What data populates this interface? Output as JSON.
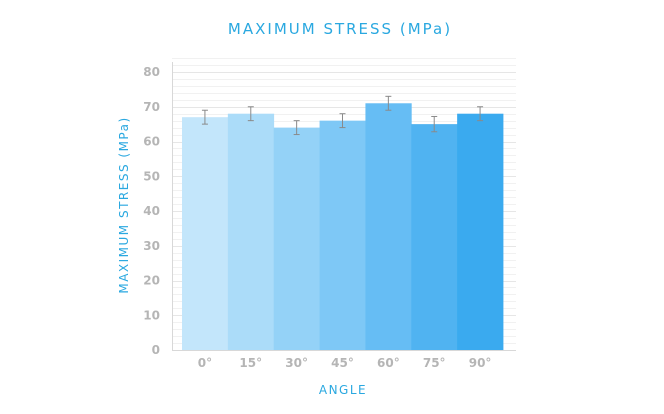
{
  "chart_data": {
    "type": "bar",
    "title": "MAXIMUM STRESS (MPa)",
    "xlabel": "ANGLE",
    "ylabel": "MAXIMUM STRESS (MPa)",
    "categories": [
      "0°",
      "15°",
      "30°",
      "45°",
      "60°",
      "75°",
      "90°"
    ],
    "values": [
      67,
      68,
      64,
      66,
      71,
      65,
      68
    ],
    "error": [
      2,
      2,
      2,
      2,
      2,
      2.2,
      2
    ],
    "ylim": [
      0,
      80
    ],
    "yticks": [
      "0",
      "10",
      "20",
      "30",
      "40",
      "50",
      "60",
      "70",
      "80"
    ],
    "grid": true,
    "legend": "none",
    "colors": [
      "#c3e6fb",
      "#abdcf9",
      "#94d2f7",
      "#7ec8f6",
      "#66bdf4",
      "#50b3f1",
      "#3aaaef"
    ],
    "error_color": "#8a8a8a"
  }
}
